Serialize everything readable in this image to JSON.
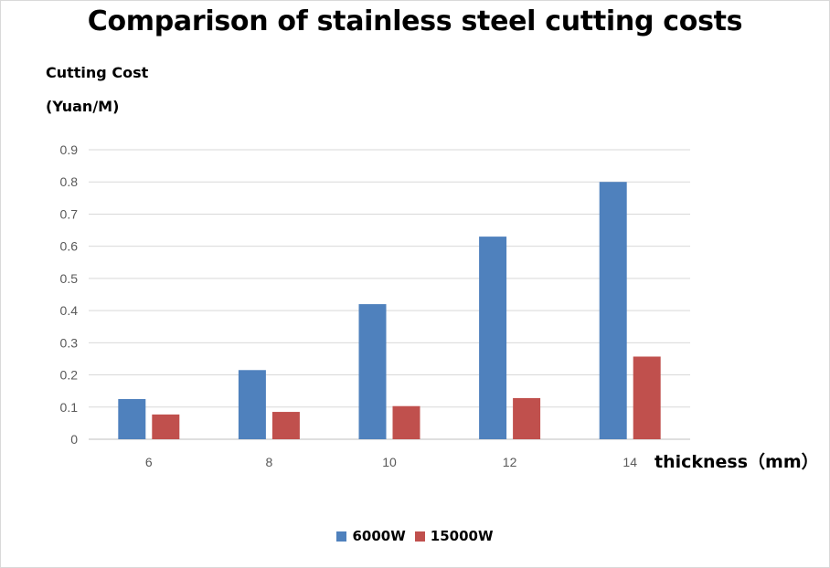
{
  "chart_data": {
    "type": "bar",
    "title": "Comparison of stainless steel cutting costs",
    "ylabel_line1": "Cutting Cost",
    "ylabel_line2": "(Yuan/M)",
    "xlabel": "thickness（mm）",
    "categories": [
      "6",
      "8",
      "10",
      "12",
      "14"
    ],
    "ylim": [
      0,
      0.9
    ],
    "yticks": [
      "0",
      "0.1",
      "0.2",
      "0.3",
      "0.4",
      "0.5",
      "0.6",
      "0.7",
      "0.8",
      "0.9"
    ],
    "grid": true,
    "legend_position": "bottom",
    "series": [
      {
        "name": "6000W",
        "color": "#4f81bd",
        "values": [
          0.125,
          0.215,
          0.42,
          0.63,
          0.8
        ]
      },
      {
        "name": "15000W",
        "color": "#c0504d",
        "values": [
          0.077,
          0.085,
          0.103,
          0.128,
          0.257
        ]
      }
    ]
  }
}
